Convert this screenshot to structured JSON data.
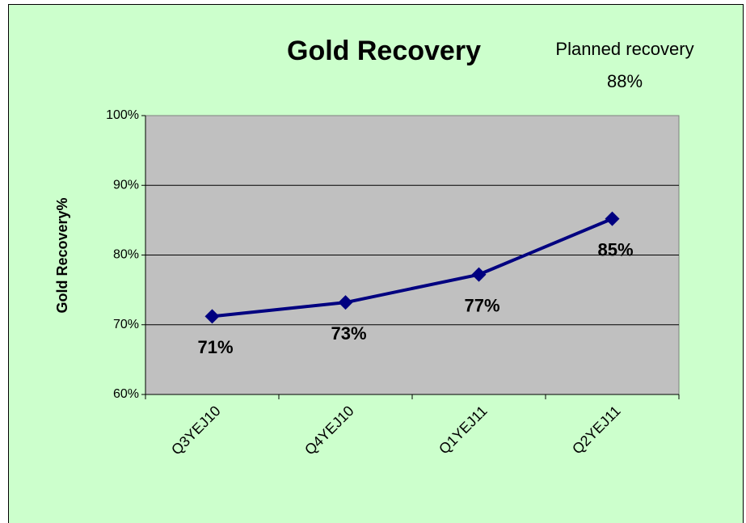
{
  "chart_data": {
    "type": "line",
    "title": "Gold Recovery",
    "annotation": [
      "Planned recovery",
      "88%"
    ],
    "y_label": "Gold Recovery%",
    "categories": [
      "Q3YEJ10",
      "Q4YEJ10",
      "Q1YEJ11",
      "Q2YEJ11"
    ],
    "series": [
      {
        "name": "Gold Recovery%",
        "color": "#000080",
        "values": [
          71.2,
          73.2,
          77.2,
          85.2
        ],
        "value_labels": [
          "71%",
          "73%",
          "77%",
          "85%"
        ]
      }
    ],
    "ylim": [
      60,
      100
    ],
    "yticks": [
      {
        "value": 60,
        "label": "60%"
      },
      {
        "value": 70,
        "label": "70%"
      },
      {
        "value": 80,
        "label": "80%"
      },
      {
        "value": 90,
        "label": "90%"
      },
      {
        "value": 100,
        "label": "100%"
      }
    ],
    "grid": true
  }
}
